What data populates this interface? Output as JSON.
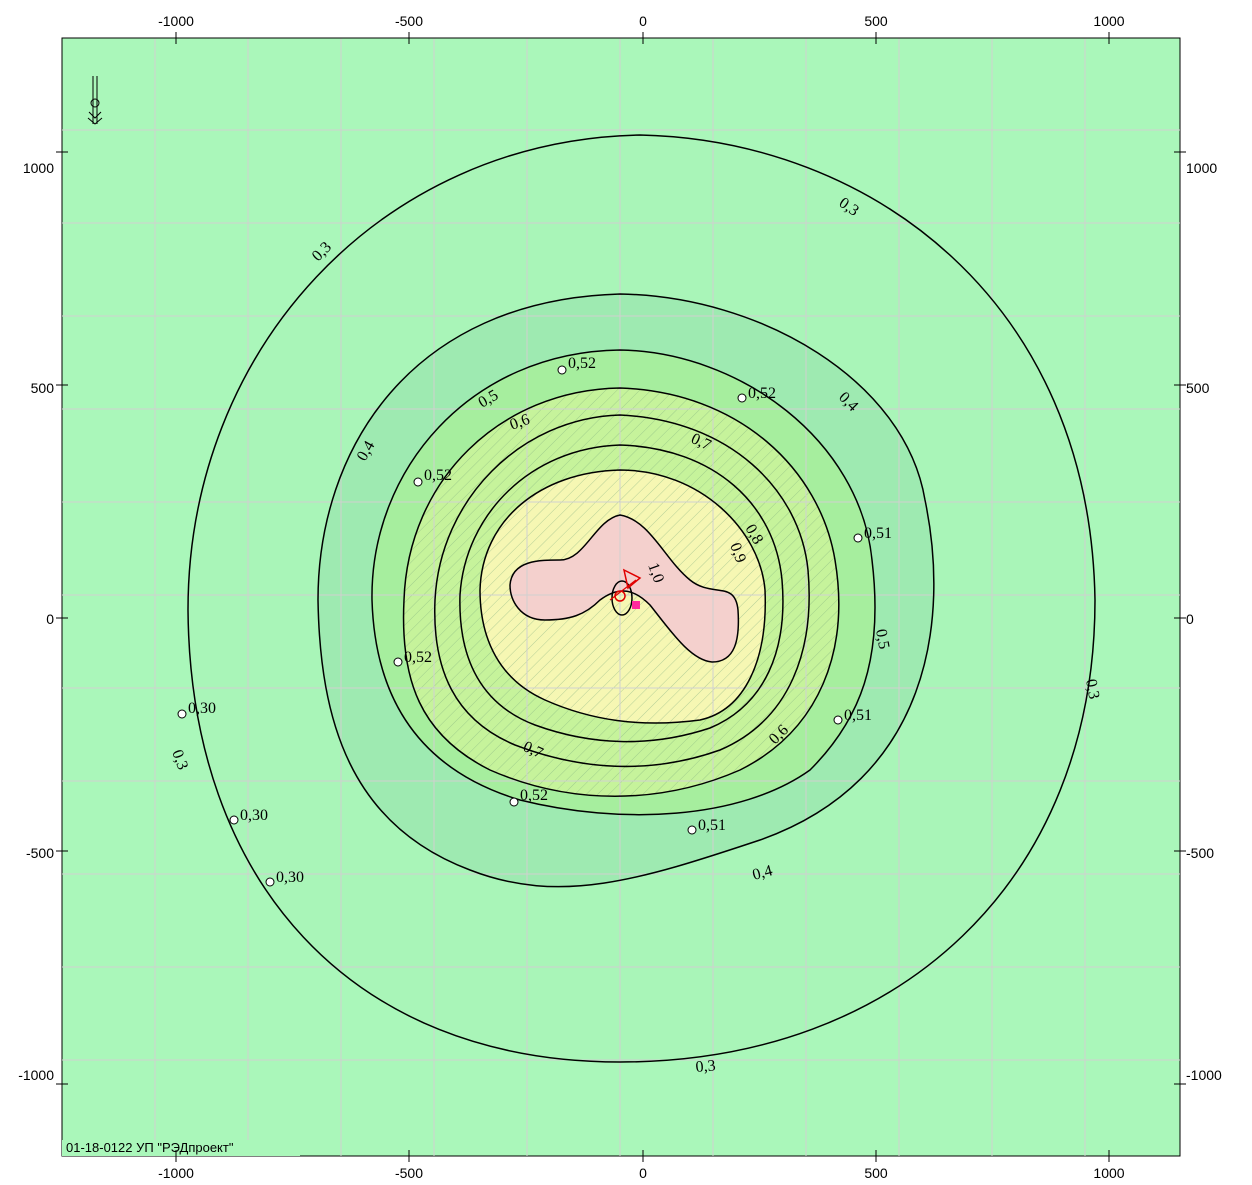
{
  "map": {
    "credit": "01-18-0122 УП \"РЭДпроект\"",
    "x_ticks": [
      "-1000",
      "-500",
      "0",
      "500",
      "1000"
    ],
    "y_ticks_left": [
      "1000",
      "500",
      "0",
      "-500",
      "-1000"
    ],
    "y_ticks_right": [
      "1000",
      "500",
      "0",
      "-500",
      "-1000"
    ],
    "contour_labels": [
      "0,3",
      "0,3",
      "0,4",
      "0,4",
      "0,5",
      "0,5",
      "0,6",
      "0,6",
      "0,7",
      "0,7",
      "0,8",
      "0,9",
      "1,0",
      "0,4",
      "0,3",
      "0,3",
      "0,3"
    ],
    "point_labels": [
      "0,52",
      "0,52",
      "0,52",
      "0,51",
      "0,52",
      "0,51",
      "0,30",
      "0,52",
      "0,51",
      "0,30",
      "0,30"
    ],
    "colors": {
      "background": "#aaf7ba",
      "outer_zone": "#a9f5b8",
      "zone_04": "#9eeab1",
      "zone_05": "#a6ee9e",
      "zone_06": "#c6f39b",
      "zone_08": "#f6f7b3",
      "zone_10": "#f4d0cd",
      "grid": "#d0d0d0",
      "source_marker": "#ff2a9d"
    }
  }
}
